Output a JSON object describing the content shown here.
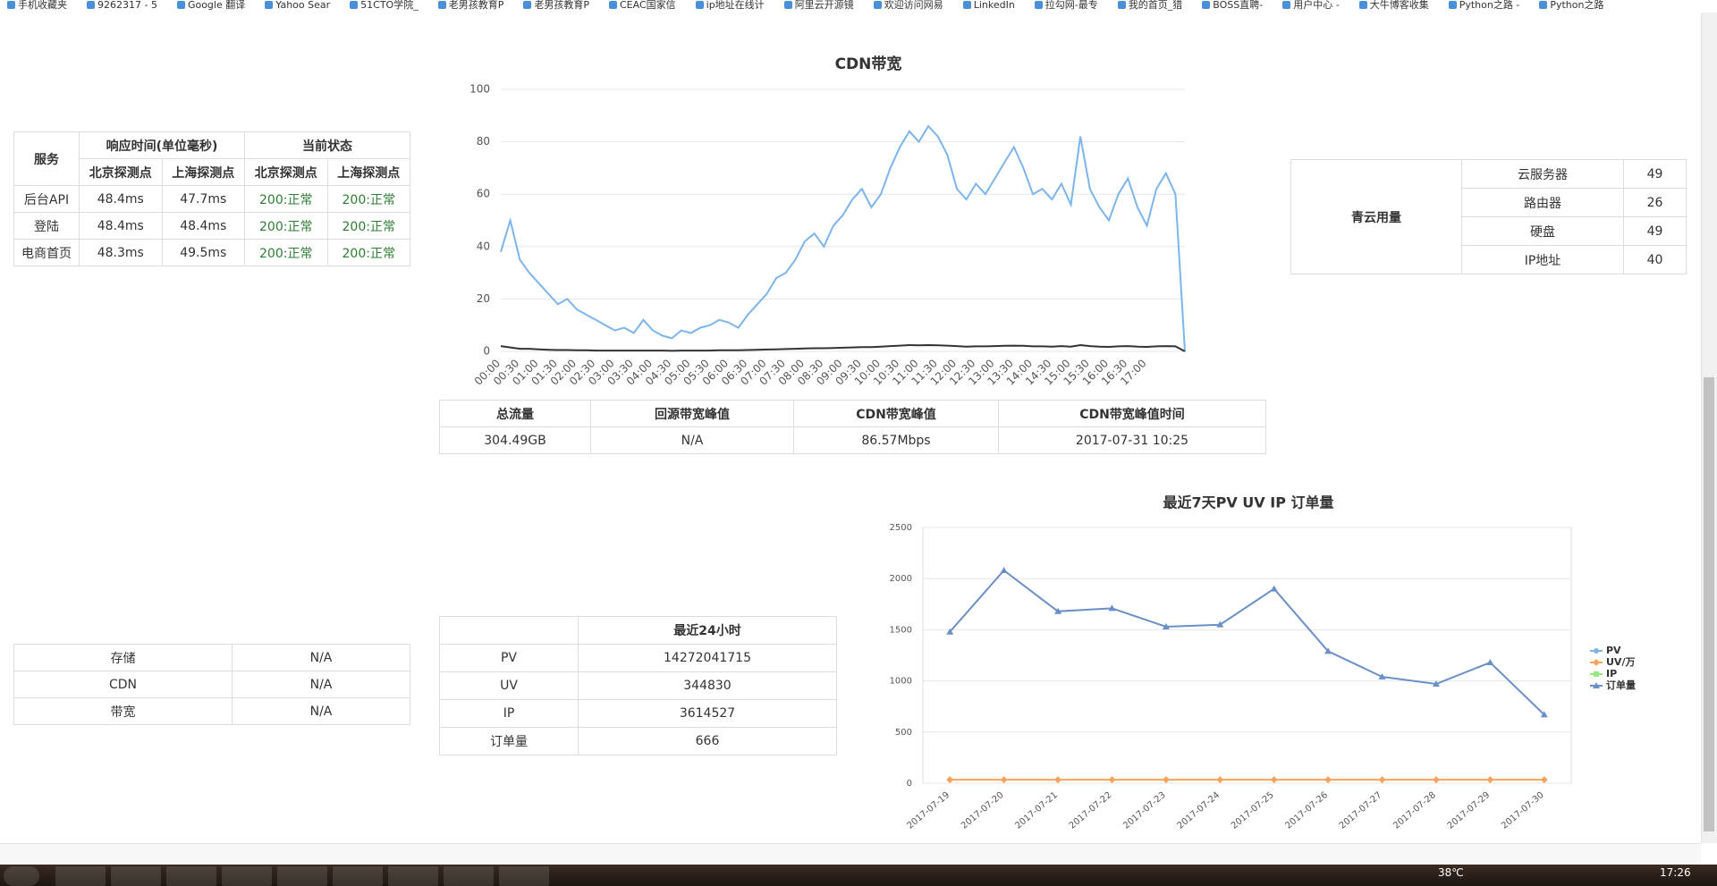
{
  "bookmarks": [
    "手机收藏夹",
    "9262317 - 5",
    "Google 翻译",
    "Yahoo Sear",
    "51CTO学院_",
    "老男孩教育P",
    "老男孩教育P",
    "CEAC国家信",
    "ip地址在线计",
    "阿里云开源镜",
    "欢迎访问网易",
    "LinkedIn",
    "拉勾网-最专",
    "我的首页_猎",
    "BOSS直聘-",
    "用户中心 -",
    "大牛博客收集",
    "Python之路 -",
    "Python之路"
  ],
  "service_table": {
    "headers": [
      "服务",
      "响应时间(单位毫秒)",
      "当前状态"
    ],
    "subheaders": [
      "北京探测点",
      "上海探测点",
      "北京探测点",
      "上海探测点"
    ],
    "rows": [
      [
        "后台API",
        "48.4ms",
        "47.7ms",
        "200:正常",
        "200:正常"
      ],
      [
        "登陆",
        "48.4ms",
        "48.4ms",
        "200:正常",
        "200:正常"
      ],
      [
        "电商首页",
        "48.3ms",
        "49.5ms",
        "200:正常",
        "200:正常"
      ]
    ]
  },
  "cdn_summary": {
    "headers": [
      "总流量",
      "回源带宽峰值",
      "CDN带宽峰值",
      "CDN带宽峰值时间"
    ],
    "rows": [
      [
        "304.49GB",
        "N/A",
        "86.57Mbps",
        "2017-07-31 10:25"
      ]
    ]
  },
  "qingcloud": {
    "label": "青云用量",
    "rows": [
      [
        "云服务器",
        "49"
      ],
      [
        "路由器",
        "26"
      ],
      [
        "硬盘",
        "49"
      ],
      [
        "IP地址",
        "40"
      ]
    ]
  },
  "resources": {
    "rows": [
      [
        "存储",
        "N/A"
      ],
      [
        "CDN",
        "N/A"
      ],
      [
        "带宽",
        "N/A"
      ]
    ]
  },
  "last24h": {
    "header": "最近24小时",
    "rows": [
      [
        "PV",
        "14272041715"
      ],
      [
        "UV",
        "344830"
      ],
      [
        "IP",
        "3614527"
      ],
      [
        "订单量",
        "666"
      ]
    ]
  },
  "chart_data": [
    {
      "type": "line",
      "title": "CDN带宽",
      "categories": [
        "00:00",
        null,
        "00:30",
        null,
        "01:00",
        null,
        "01:30",
        null,
        "02:00",
        null,
        "02:30",
        null,
        "03:00",
        null,
        "03:30",
        null,
        "04:00",
        null,
        "04:30",
        null,
        "05:00",
        null,
        "05:30",
        null,
        "06:00",
        null,
        "06:30",
        null,
        "07:00",
        null,
        "07:30",
        null,
        "08:00",
        null,
        "08:30",
        null,
        "09:00",
        null,
        "09:30",
        null,
        "10:00",
        null,
        "10:30",
        null,
        "11:00",
        null,
        "11:30",
        null,
        "12:00",
        null,
        "12:30",
        null,
        "13:00",
        null,
        "13:30",
        null,
        "14:00",
        null,
        "14:30",
        null,
        "15:00",
        null,
        "15:30",
        null,
        "16:00",
        null,
        "16:30",
        null,
        "17:00",
        null,
        null,
        null,
        null
      ],
      "series": [
        {
          "color": "#7cb5ec",
          "values": [
            38,
            50,
            35,
            30,
            26,
            22,
            18,
            20,
            16,
            14,
            12,
            10,
            8,
            9,
            7,
            12,
            8,
            6,
            5,
            8,
            7,
            9,
            10,
            12,
            11,
            9,
            14,
            18,
            22,
            28,
            30,
            35,
            42,
            45,
            40,
            48,
            52,
            58,
            62,
            55,
            60,
            70,
            78,
            84,
            80,
            86,
            82,
            75,
            62,
            58,
            64,
            60,
            66,
            72,
            78,
            70,
            60,
            62,
            58,
            64,
            56,
            82,
            62,
            55,
            50,
            60,
            66,
            55,
            48,
            62,
            68,
            60,
            0
          ]
        },
        {
          "color": "#333333",
          "values": [
            2,
            1.5,
            1,
            1,
            0.8,
            0.6,
            0.5,
            0.5,
            0.4,
            0.4,
            0.3,
            0.3,
            0.3,
            0.3,
            0.3,
            0.3,
            0.3,
            0.3,
            0.2,
            0.3,
            0.3,
            0.3,
            0.3,
            0.4,
            0.4,
            0.4,
            0.5,
            0.6,
            0.7,
            0.8,
            0.9,
            1,
            1.1,
            1.2,
            1.2,
            1.3,
            1.4,
            1.5,
            1.6,
            1.6,
            1.8,
            2,
            2.2,
            2.4,
            2.3,
            2.4,
            2.3,
            2.2,
            2,
            1.8,
            1.9,
            1.9,
            2,
            2.1,
            2.2,
            2.1,
            1.9,
            1.9,
            1.8,
            2,
            1.8,
            2.4,
            2,
            1.8,
            1.7,
            1.9,
            2,
            1.8,
            1.7,
            1.9,
            2,
            1.9,
            0
          ]
        }
      ],
      "ylim": [
        0,
        100
      ],
      "yticks": [
        0,
        20,
        40,
        60,
        80,
        100
      ],
      "grid": true
    },
    {
      "type": "line",
      "title": "最近7天PV UV IP 订单量",
      "categories": [
        "2017-07-19",
        "2017-07-20",
        "2017-07-21",
        "2017-07-22",
        "2017-07-23",
        "2017-07-24",
        "2017-07-25",
        "2017-07-26",
        "2017-07-27",
        "2017-07-28",
        "2017-07-29",
        "2017-07-30"
      ],
      "series": [
        {
          "name": "PV",
          "color": "#7cb5ec",
          "marker": "circle",
          "values": [
            null,
            null,
            null,
            null,
            null,
            null,
            null,
            null,
            null,
            null,
            null,
            null
          ]
        },
        {
          "name": "UV/万",
          "color": "#f7a35c",
          "marker": "diamond",
          "values": [
            34,
            34,
            34,
            34,
            34,
            34,
            34,
            34,
            34,
            34,
            34,
            34
          ]
        },
        {
          "name": "IP",
          "color": "#90ed7d",
          "marker": "square",
          "values": [
            null,
            null,
            null,
            null,
            null,
            null,
            null,
            null,
            null,
            null,
            null,
            null
          ]
        },
        {
          "name": "订单量",
          "color": "#6b8fc7",
          "marker": "triangle",
          "values": [
            1480,
            2080,
            1680,
            1710,
            1530,
            1550,
            1900,
            1290,
            1040,
            970,
            1180,
            670
          ]
        }
      ],
      "ylim": [
        0,
        2500
      ],
      "yticks": [
        0,
        500,
        1000,
        1500,
        2000,
        2500
      ],
      "grid": true,
      "legend": "right"
    }
  ],
  "taskbar": {
    "temperature": "38℃",
    "time": "17:26"
  }
}
